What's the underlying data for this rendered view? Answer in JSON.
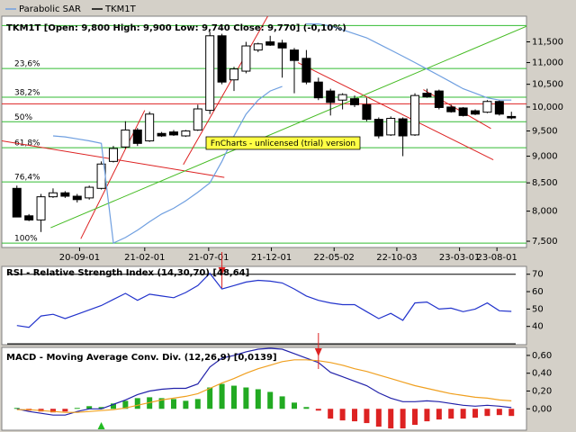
{
  "chart_data": [
    {
      "type": "candlestick",
      "title": "TKM1T [Open: 9,800  High: 9,900  Low: 9,740  Close: 9,770] (-0,10%)",
      "xlim": [
        -1.25,
        42.25
      ],
      "xticks": [
        {
          "value": 5.2,
          "label": "20-09-01"
        },
        {
          "value": 10.6,
          "label": "21-02-01"
        },
        {
          "value": 15.9,
          "label": "21-07-01"
        },
        {
          "value": 21.1,
          "label": "21-12-01"
        },
        {
          "value": 26.3,
          "label": "22-05-02"
        },
        {
          "value": 31.5,
          "label": "22-10-03"
        },
        {
          "value": 36.7,
          "label": "23-03-01"
        },
        {
          "value": 39.8,
          "label": "23-08-01"
        }
      ],
      "ylim": [
        7.4,
        12.15
      ],
      "log_scale": true,
      "yticks": [
        {
          "value": 7.5,
          "label": "7,500"
        },
        {
          "value": 8,
          "label": "8,000"
        },
        {
          "value": 8.5,
          "label": "8,500"
        },
        {
          "value": 9,
          "label": "9,000"
        },
        {
          "value": 9.5,
          "label": "9,500"
        },
        {
          "value": 10,
          "label": "10,000"
        },
        {
          "value": 10.5,
          "label": "10,500"
        },
        {
          "value": 11,
          "label": "11,000"
        },
        {
          "value": 11.5,
          "label": "11,500"
        }
      ],
      "series": [
        {
          "name": "TKM1T",
          "color": "#000000",
          "up_color": "#ffffff",
          "open": [
            8.4,
            7.92,
            7.85,
            8.25,
            8.32,
            8.26,
            8.23,
            8.4,
            8.9,
            9.18,
            9.52,
            9.3,
            9.45,
            9.48,
            9.4,
            9.52,
            9.93,
            11.65,
            10.6,
            10.8,
            11.3,
            11.5,
            11.47,
            11.3,
            11.1,
            10.55,
            10.35,
            10.15,
            10.18,
            10.05,
            9.74,
            9.42,
            9.75,
            9.42,
            10.3,
            10.35,
            10.0,
            9.98,
            9.92,
            9.89,
            10.12,
            9.8
          ],
          "high": [
            8.45,
            7.95,
            8.3,
            8.4,
            8.35,
            8.3,
            8.45,
            8.9,
            9.2,
            9.7,
            9.56,
            9.9,
            9.48,
            9.52,
            9.52,
            10.05,
            11.75,
            11.7,
            10.9,
            11.5,
            11.48,
            11.65,
            11.55,
            11.35,
            11.3,
            10.65,
            10.4,
            10.3,
            10.25,
            10.2,
            9.78,
            9.8,
            9.78,
            10.3,
            10.4,
            10.38,
            10.05,
            10.0,
            9.95,
            10.15,
            10.15,
            9.9
          ],
          "low": [
            7.9,
            7.83,
            7.65,
            8.23,
            8.23,
            8.15,
            8.2,
            8.38,
            8.88,
            9.15,
            9.2,
            9.28,
            9.38,
            9.4,
            9.38,
            9.5,
            9.85,
            10.5,
            10.35,
            10.75,
            11.25,
            11.4,
            10.65,
            10.3,
            10.5,
            10.15,
            9.82,
            9.95,
            10.0,
            9.7,
            9.35,
            9.4,
            9.0,
            9.4,
            10.2,
            9.95,
            9.88,
            9.8,
            9.83,
            9.87,
            9.82,
            9.74
          ],
          "close": [
            7.9,
            7.85,
            8.25,
            8.32,
            8.26,
            8.2,
            8.42,
            8.85,
            9.15,
            9.52,
            9.25,
            9.85,
            9.4,
            9.42,
            9.5,
            9.96,
            11.65,
            10.55,
            10.85,
            11.4,
            11.45,
            11.42,
            11.35,
            11.05,
            10.55,
            10.2,
            10.1,
            10.27,
            10.05,
            9.74,
            9.4,
            9.76,
            9.4,
            10.25,
            10.22,
            9.99,
            9.9,
            9.82,
            9.85,
            10.12,
            9.85,
            9.77
          ]
        },
        {
          "name": "Parabolic SAR",
          "color": "#6f9fe0",
          "values": [
            null,
            null,
            null,
            9.4,
            9.38,
            9.34,
            9.3,
            9.25,
            7.47,
            7.56,
            7.68,
            7.82,
            7.95,
            8.05,
            8.18,
            8.33,
            8.5,
            8.9,
            9.4,
            9.85,
            10.15,
            10.35,
            10.45,
            null,
            11.95,
            11.95,
            11.9,
            11.8,
            11.7,
            11.6,
            11.45,
            11.3,
            11.15,
            11.0,
            10.85,
            10.7,
            10.55,
            10.4,
            10.3,
            10.2,
            10.15,
            10.15
          ]
        }
      ],
      "fib_color": "#33bb33",
      "fib_levels": [
        11.91,
        {
          "value": 10.862,
          "label": "23,6%"
        },
        {
          "value": 10.214,
          "label": "38,2%"
        },
        {
          "value": 9.69,
          "label": "50%"
        },
        {
          "value": 9.166,
          "label": "61,8%"
        },
        {
          "value": 8.518,
          "label": "76,4%"
        },
        {
          "value": 7.47,
          "label": "100%"
        }
      ],
      "hlines": [
        {
          "value": 10.07,
          "color": "#dd2222"
        }
      ],
      "trendlines": [
        {
          "color": "#dd2222",
          "x": [
            -1.25,
            17.2
          ],
          "y": [
            9.3,
            8.6
          ]
        },
        {
          "color": "#dd2222",
          "x": [
            5.3,
            10.6
          ],
          "y": [
            7.54,
            9.93
          ]
        },
        {
          "color": "#dd2222",
          "x": [
            13.8,
            20.8
          ],
          "y": [
            8.84,
            12.15
          ]
        },
        {
          "color": "#dd2222",
          "x": [
            23.3,
            39.5
          ],
          "y": [
            11.0,
            8.93
          ]
        },
        {
          "color": "#dd2222",
          "x": [
            33.7,
            39.3
          ],
          "y": [
            10.38,
            9.55
          ]
        },
        {
          "color": "#44bb22",
          "x": [
            2.8,
            42.25
          ],
          "y": [
            7.72,
            11.89
          ]
        }
      ],
      "annotation": "FnCharts - unlicensed (trial) version"
    },
    {
      "type": "line",
      "title": "RSI - Relative Strength Index (14,30,70) [48,64]",
      "xlim": [
        -1.25,
        42.25
      ],
      "ylim": [
        29.5,
        74.5
      ],
      "yticks": [
        40,
        50,
        60,
        70
      ],
      "levels": [
        70,
        30
      ],
      "series": [
        {
          "color": "#2233cc",
          "values": [
            40.5,
            39.5,
            46,
            47,
            44.5,
            47,
            49.5,
            52,
            55.5,
            59,
            55,
            58.5,
            57.5,
            56.5,
            59.5,
            63.5,
            70.5,
            61.5,
            63.5,
            65.5,
            66.5,
            66,
            65,
            61.5,
            57.5,
            55,
            53.5,
            52.5,
            52.5,
            48.5,
            44.5,
            47.5,
            43.5,
            53.5,
            54,
            50,
            50.5,
            48.5,
            50,
            53.5,
            49,
            48.64
          ]
        }
      ],
      "sell_signals": [
        17
      ],
      "signal_colors": {
        "buy": "#22bb22",
        "sell": "#dd2222"
      }
    },
    {
      "type": "macd",
      "title": "MACD - Moving Average Conv. Div. (12,26,9) [0,0139]",
      "xlim": [
        -1.25,
        42.25
      ],
      "ylim": [
        -0.24,
        0.69
      ],
      "yticks": [
        {
          "value": 0,
          "label": "0,00"
        },
        {
          "value": 0.2,
          "label": "0,20"
        },
        {
          "value": 0.4,
          "label": "0,40"
        },
        {
          "value": 0.6,
          "label": "0,60"
        }
      ],
      "series": [
        {
          "color": "#2222aa",
          "values": [
            0.0,
            -0.03,
            -0.05,
            -0.07,
            -0.07,
            -0.03,
            0.0,
            0.0,
            0.05,
            0.1,
            0.16,
            0.2,
            0.22,
            0.23,
            0.23,
            0.28,
            0.47,
            0.57,
            0.6,
            0.64,
            0.67,
            0.68,
            0.67,
            0.62,
            0.57,
            0.52,
            0.41,
            0.36,
            0.31,
            0.26,
            0.18,
            0.12,
            0.08,
            0.08,
            0.09,
            0.08,
            0.06,
            0.04,
            0.03,
            0.04,
            0.03,
            0.0139
          ]
        },
        {
          "color": "#f0a020",
          "values": [
            -0.01,
            -0.01,
            -0.02,
            -0.03,
            -0.04,
            -0.04,
            -0.03,
            -0.02,
            -0.01,
            0.01,
            0.04,
            0.07,
            0.1,
            0.12,
            0.14,
            0.17,
            0.23,
            0.29,
            0.34,
            0.4,
            0.45,
            0.49,
            0.53,
            0.55,
            0.55,
            0.54,
            0.52,
            0.49,
            0.45,
            0.42,
            0.38,
            0.34,
            0.3,
            0.26,
            0.23,
            0.2,
            0.17,
            0.15,
            0.13,
            0.12,
            0.1,
            0.09
          ]
        }
      ],
      "histogram": {
        "up_color": "#22aa22",
        "down_color": "#dd2222",
        "values": [
          0.01,
          -0.02,
          -0.03,
          -0.04,
          -0.03,
          0.01,
          0.03,
          0.02,
          0.06,
          0.09,
          0.12,
          0.13,
          0.12,
          0.11,
          0.09,
          0.11,
          0.24,
          0.28,
          0.26,
          0.24,
          0.22,
          0.19,
          0.14,
          0.07,
          0.02,
          -0.02,
          -0.11,
          -0.13,
          -0.14,
          -0.16,
          -0.2,
          -0.22,
          -0.22,
          -0.18,
          -0.14,
          -0.12,
          -0.11,
          -0.11,
          -0.1,
          -0.08,
          -0.07,
          -0.08
        ]
      },
      "buy_signals": [
        7
      ],
      "sell_signals": [
        25
      ],
      "signal_colors": {
        "buy": "#22bb22",
        "sell": "#dd2222"
      }
    }
  ]
}
